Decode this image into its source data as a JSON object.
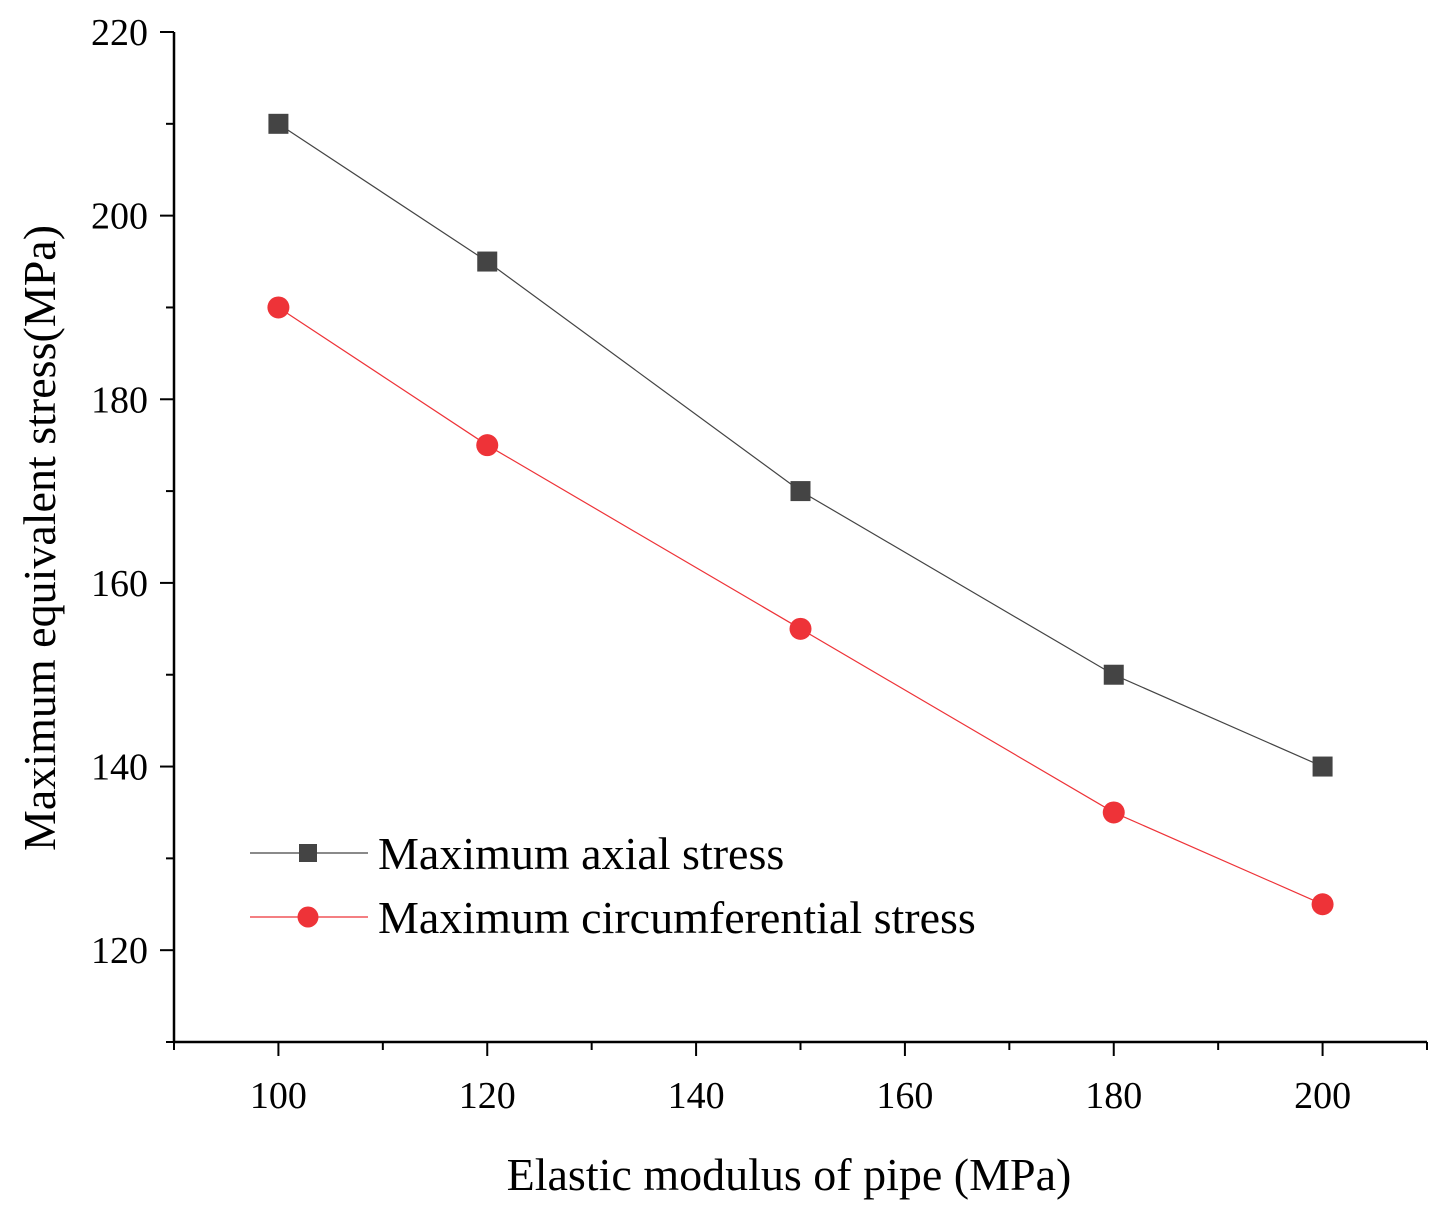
{
  "chart_data": {
    "type": "line",
    "title": "",
    "xlabel": "Elastic modulus of pipe (MPa)",
    "ylabel": "Maximum equivalent stress(MPa)",
    "xlim": [
      90,
      210
    ],
    "ylim": [
      110,
      220
    ],
    "x_ticks": [
      100,
      120,
      140,
      160,
      180,
      200
    ],
    "y_ticks": [
      120,
      140,
      160,
      180,
      200,
      220
    ],
    "grid": false,
    "legend_position": "bottom-left",
    "x": [
      100,
      120,
      150,
      180,
      200
    ],
    "series": [
      {
        "name": "Maximum axial stress",
        "values": [
          210,
          195,
          170,
          150,
          140
        ],
        "marker": "square",
        "color": "#444444"
      },
      {
        "name": "Maximum circumferential stress",
        "values": [
          190,
          175,
          155,
          135,
          125
        ],
        "marker": "circle",
        "color": "#ee3338"
      }
    ]
  }
}
